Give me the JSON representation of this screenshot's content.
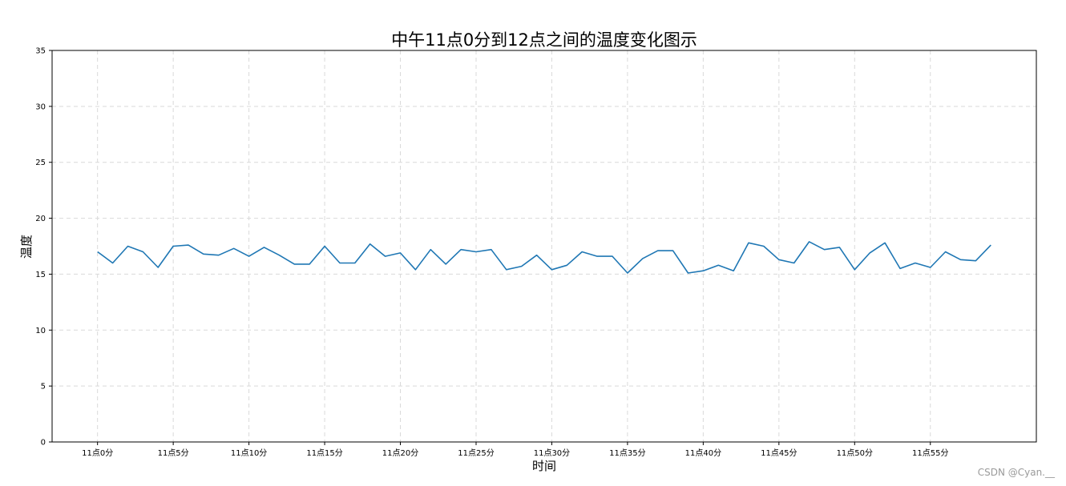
{
  "chart_data": {
    "type": "line",
    "title": "中午11点0分到12点之间的温度变化图示",
    "xlabel": "时间",
    "ylabel": "温度",
    "ylim": [
      0,
      35
    ],
    "yticks": [
      0,
      5,
      10,
      15,
      20,
      25,
      30,
      35
    ],
    "xlim": [
      -3,
      62
    ],
    "grid": true,
    "line_color": "#1f77b4",
    "x": [
      0,
      1,
      2,
      3,
      4,
      5,
      6,
      7,
      8,
      9,
      10,
      11,
      12,
      13,
      14,
      15,
      16,
      17,
      18,
      19,
      20,
      21,
      22,
      23,
      24,
      25,
      26,
      27,
      28,
      29,
      30,
      31,
      32,
      33,
      34,
      35,
      36,
      37,
      38,
      39,
      40,
      41,
      42,
      43,
      44,
      45,
      46,
      47,
      48,
      49,
      50,
      51,
      52,
      53,
      54,
      55,
      56,
      57,
      58,
      59
    ],
    "xticks": [
      0,
      5,
      10,
      15,
      20,
      25,
      30,
      35,
      40,
      45,
      50,
      55
    ],
    "xtick_labels": [
      "11点0分",
      "11点5分",
      "11点10分",
      "11点15分",
      "11点20分",
      "11点25分",
      "11点30分",
      "11点35分",
      "11点40分",
      "11点45分",
      "11点50分",
      "11点55分"
    ],
    "series": [
      {
        "values": [
          17.0,
          16.0,
          17.5,
          17.0,
          15.6,
          17.5,
          17.6,
          16.8,
          16.7,
          17.3,
          16.6,
          17.4,
          16.7,
          15.9,
          15.9,
          17.5,
          16.0,
          16.0,
          17.7,
          16.6,
          16.9,
          15.4,
          17.2,
          15.9,
          17.2,
          17.0,
          17.2,
          15.4,
          15.7,
          16.7,
          15.4,
          15.8,
          17.0,
          16.6,
          16.6,
          15.1,
          16.4,
          17.1,
          17.1,
          15.1,
          15.3,
          15.8,
          15.3,
          17.8,
          17.5,
          16.3,
          16.0,
          17.9,
          17.2,
          17.4,
          15.4,
          16.9,
          17.8,
          15.5,
          16.0,
          15.6,
          17.0,
          16.3,
          16.2,
          17.6
        ]
      }
    ]
  },
  "watermark": "CSDN @Cyan.__"
}
